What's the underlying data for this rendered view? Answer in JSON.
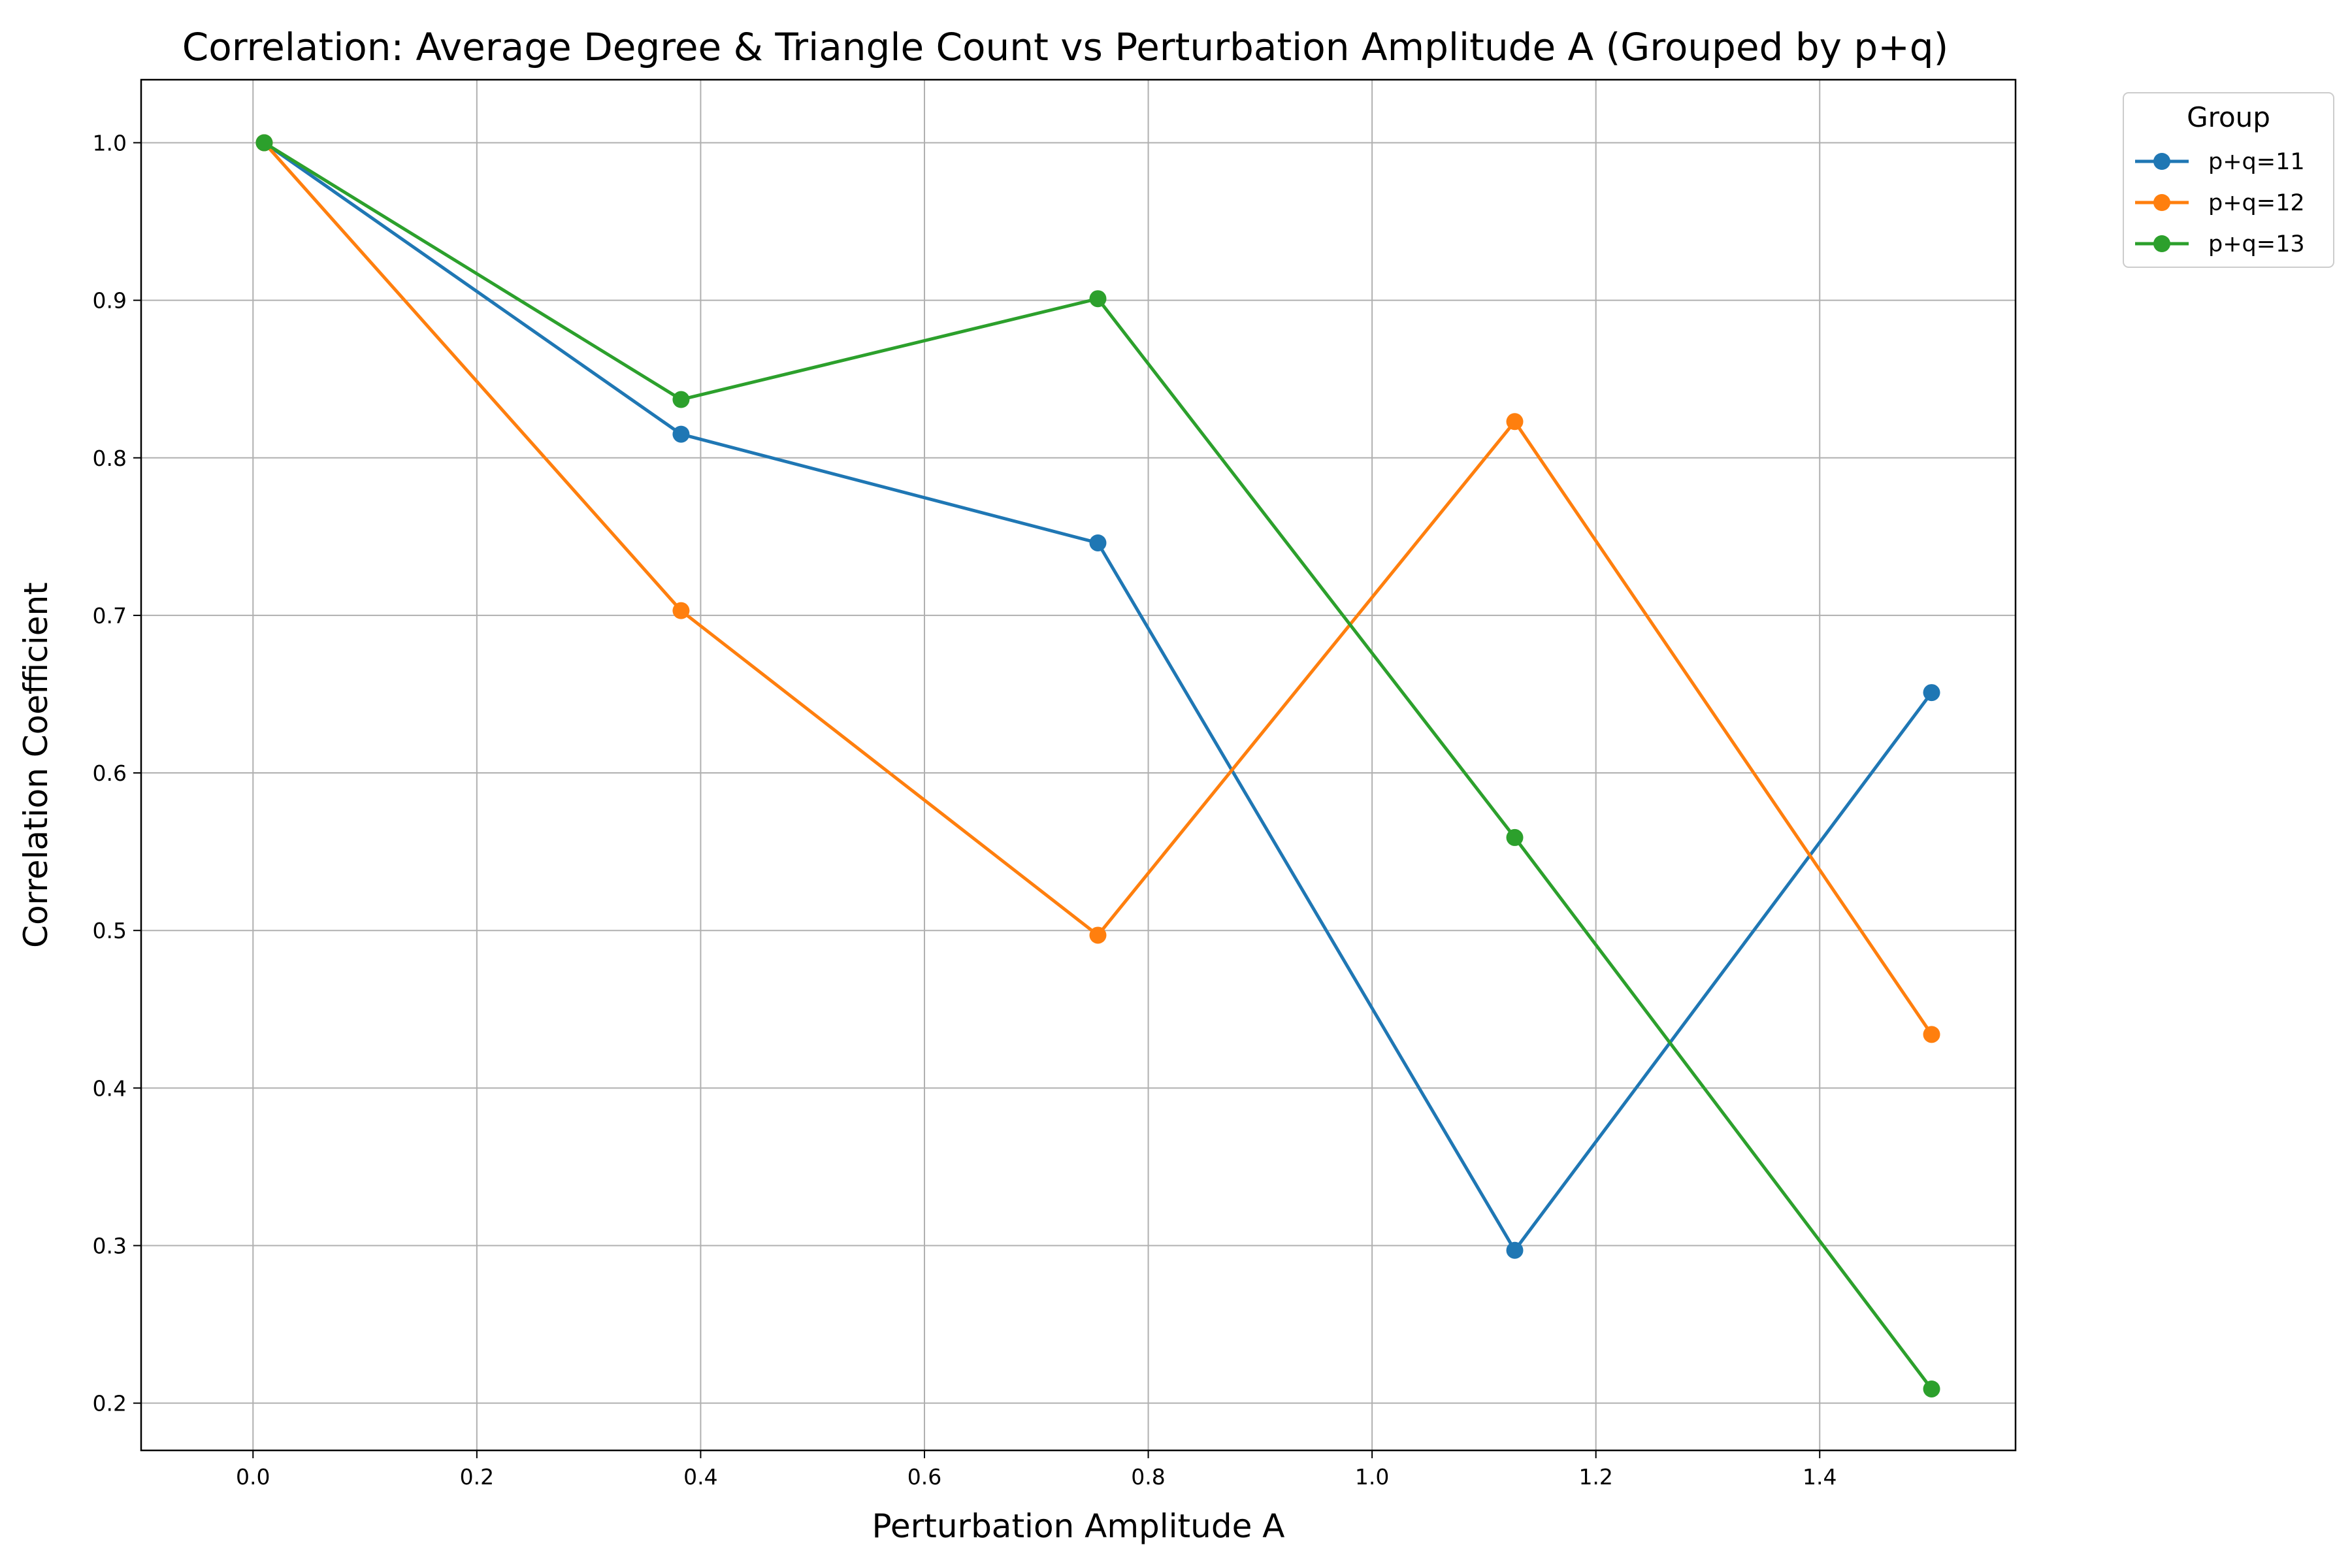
{
  "chart_data": {
    "type": "line",
    "title": "Correlation: Average Degree & Triangle Count vs Perturbation Amplitude A (Grouped by p+q)",
    "xlabel": "Perturbation Amplitude A",
    "ylabel": "Correlation Coefficient",
    "xlim": [
      -0.1,
      1.575
    ],
    "ylim": [
      0.17,
      1.04
    ],
    "xticks": [
      0.0,
      0.2,
      0.4,
      0.6,
      0.8,
      1.0,
      1.2,
      1.4
    ],
    "xtick_labels": [
      "0.0",
      "0.2",
      "0.4",
      "0.6",
      "0.8",
      "1.0",
      "1.2",
      "1.4"
    ],
    "yticks": [
      0.2,
      0.3,
      0.4,
      0.5,
      0.6,
      0.7,
      0.8,
      0.9,
      1.0
    ],
    "ytick_labels": [
      "0.2",
      "0.3",
      "0.4",
      "0.5",
      "0.6",
      "0.7",
      "0.8",
      "0.9",
      "1.0"
    ],
    "grid": true,
    "legend": {
      "title": "Group",
      "placement": "outside upper-right"
    },
    "x": [
      0.01,
      0.3825,
      0.755,
      1.1275,
      1.5
    ],
    "series": [
      {
        "name": "p+q=11",
        "color": "#1f77b4",
        "values": [
          1.0,
          0.815,
          0.746,
          0.297,
          0.651
        ]
      },
      {
        "name": "p+q=12",
        "color": "#ff7f0e",
        "values": [
          1.0,
          0.703,
          0.497,
          0.823,
          0.434
        ]
      },
      {
        "name": "p+q=13",
        "color": "#2ca02c",
        "values": [
          1.0,
          0.837,
          0.901,
          0.559,
          0.209
        ]
      }
    ]
  }
}
